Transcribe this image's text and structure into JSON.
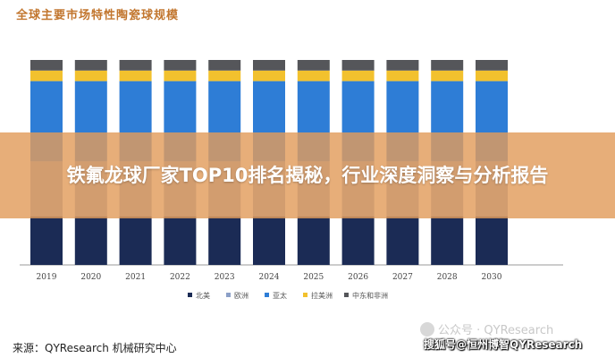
{
  "chart_data": {
    "type": "bar",
    "stacked": true,
    "normalized": true,
    "title": "全球主要市场特性陶瓷球规模",
    "categories": [
      "2019",
      "2020",
      "2021",
      "2022",
      "2023",
      "2024",
      "2025",
      "2026",
      "2027",
      "2028",
      "2030"
    ],
    "series": [
      {
        "name": "北美",
        "color": "#1b2b55",
        "values": [
          0.23,
          0.23,
          0.23,
          0.23,
          0.23,
          0.23,
          0.23,
          0.23,
          0.23,
          0.23,
          0.23
        ]
      },
      {
        "name": "欧洲",
        "color": "#8ca0c8",
        "values": [
          0.26,
          0.26,
          0.26,
          0.26,
          0.26,
          0.26,
          0.26,
          0.26,
          0.26,
          0.26,
          0.26
        ]
      },
      {
        "name": "亚太",
        "color": "#2e7dd6",
        "values": [
          0.38,
          0.38,
          0.38,
          0.38,
          0.38,
          0.38,
          0.38,
          0.38,
          0.38,
          0.38,
          0.38
        ]
      },
      {
        "name": "拉美洲",
        "color": "#f2c12e",
        "values": [
          0.05,
          0.05,
          0.05,
          0.05,
          0.05,
          0.05,
          0.05,
          0.05,
          0.05,
          0.05,
          0.05
        ]
      },
      {
        "name": "中东和非洲",
        "color": "#55565a",
        "values": [
          0.05,
          0.05,
          0.05,
          0.05,
          0.05,
          0.05,
          0.05,
          0.05,
          0.05,
          0.05,
          0.05
        ]
      }
    ],
    "legend_position": "bottom",
    "grid": false
  },
  "banner": {
    "text": "铁氟龙球厂家TOP10排名揭秘，行业深度洞察与分析报告"
  },
  "source": {
    "text": "来源：QYResearch 机械研究中心"
  },
  "watermarks": {
    "faded": "公众号 · QYResearch",
    "main": "搜狐号@恒州博智QYResearch"
  }
}
